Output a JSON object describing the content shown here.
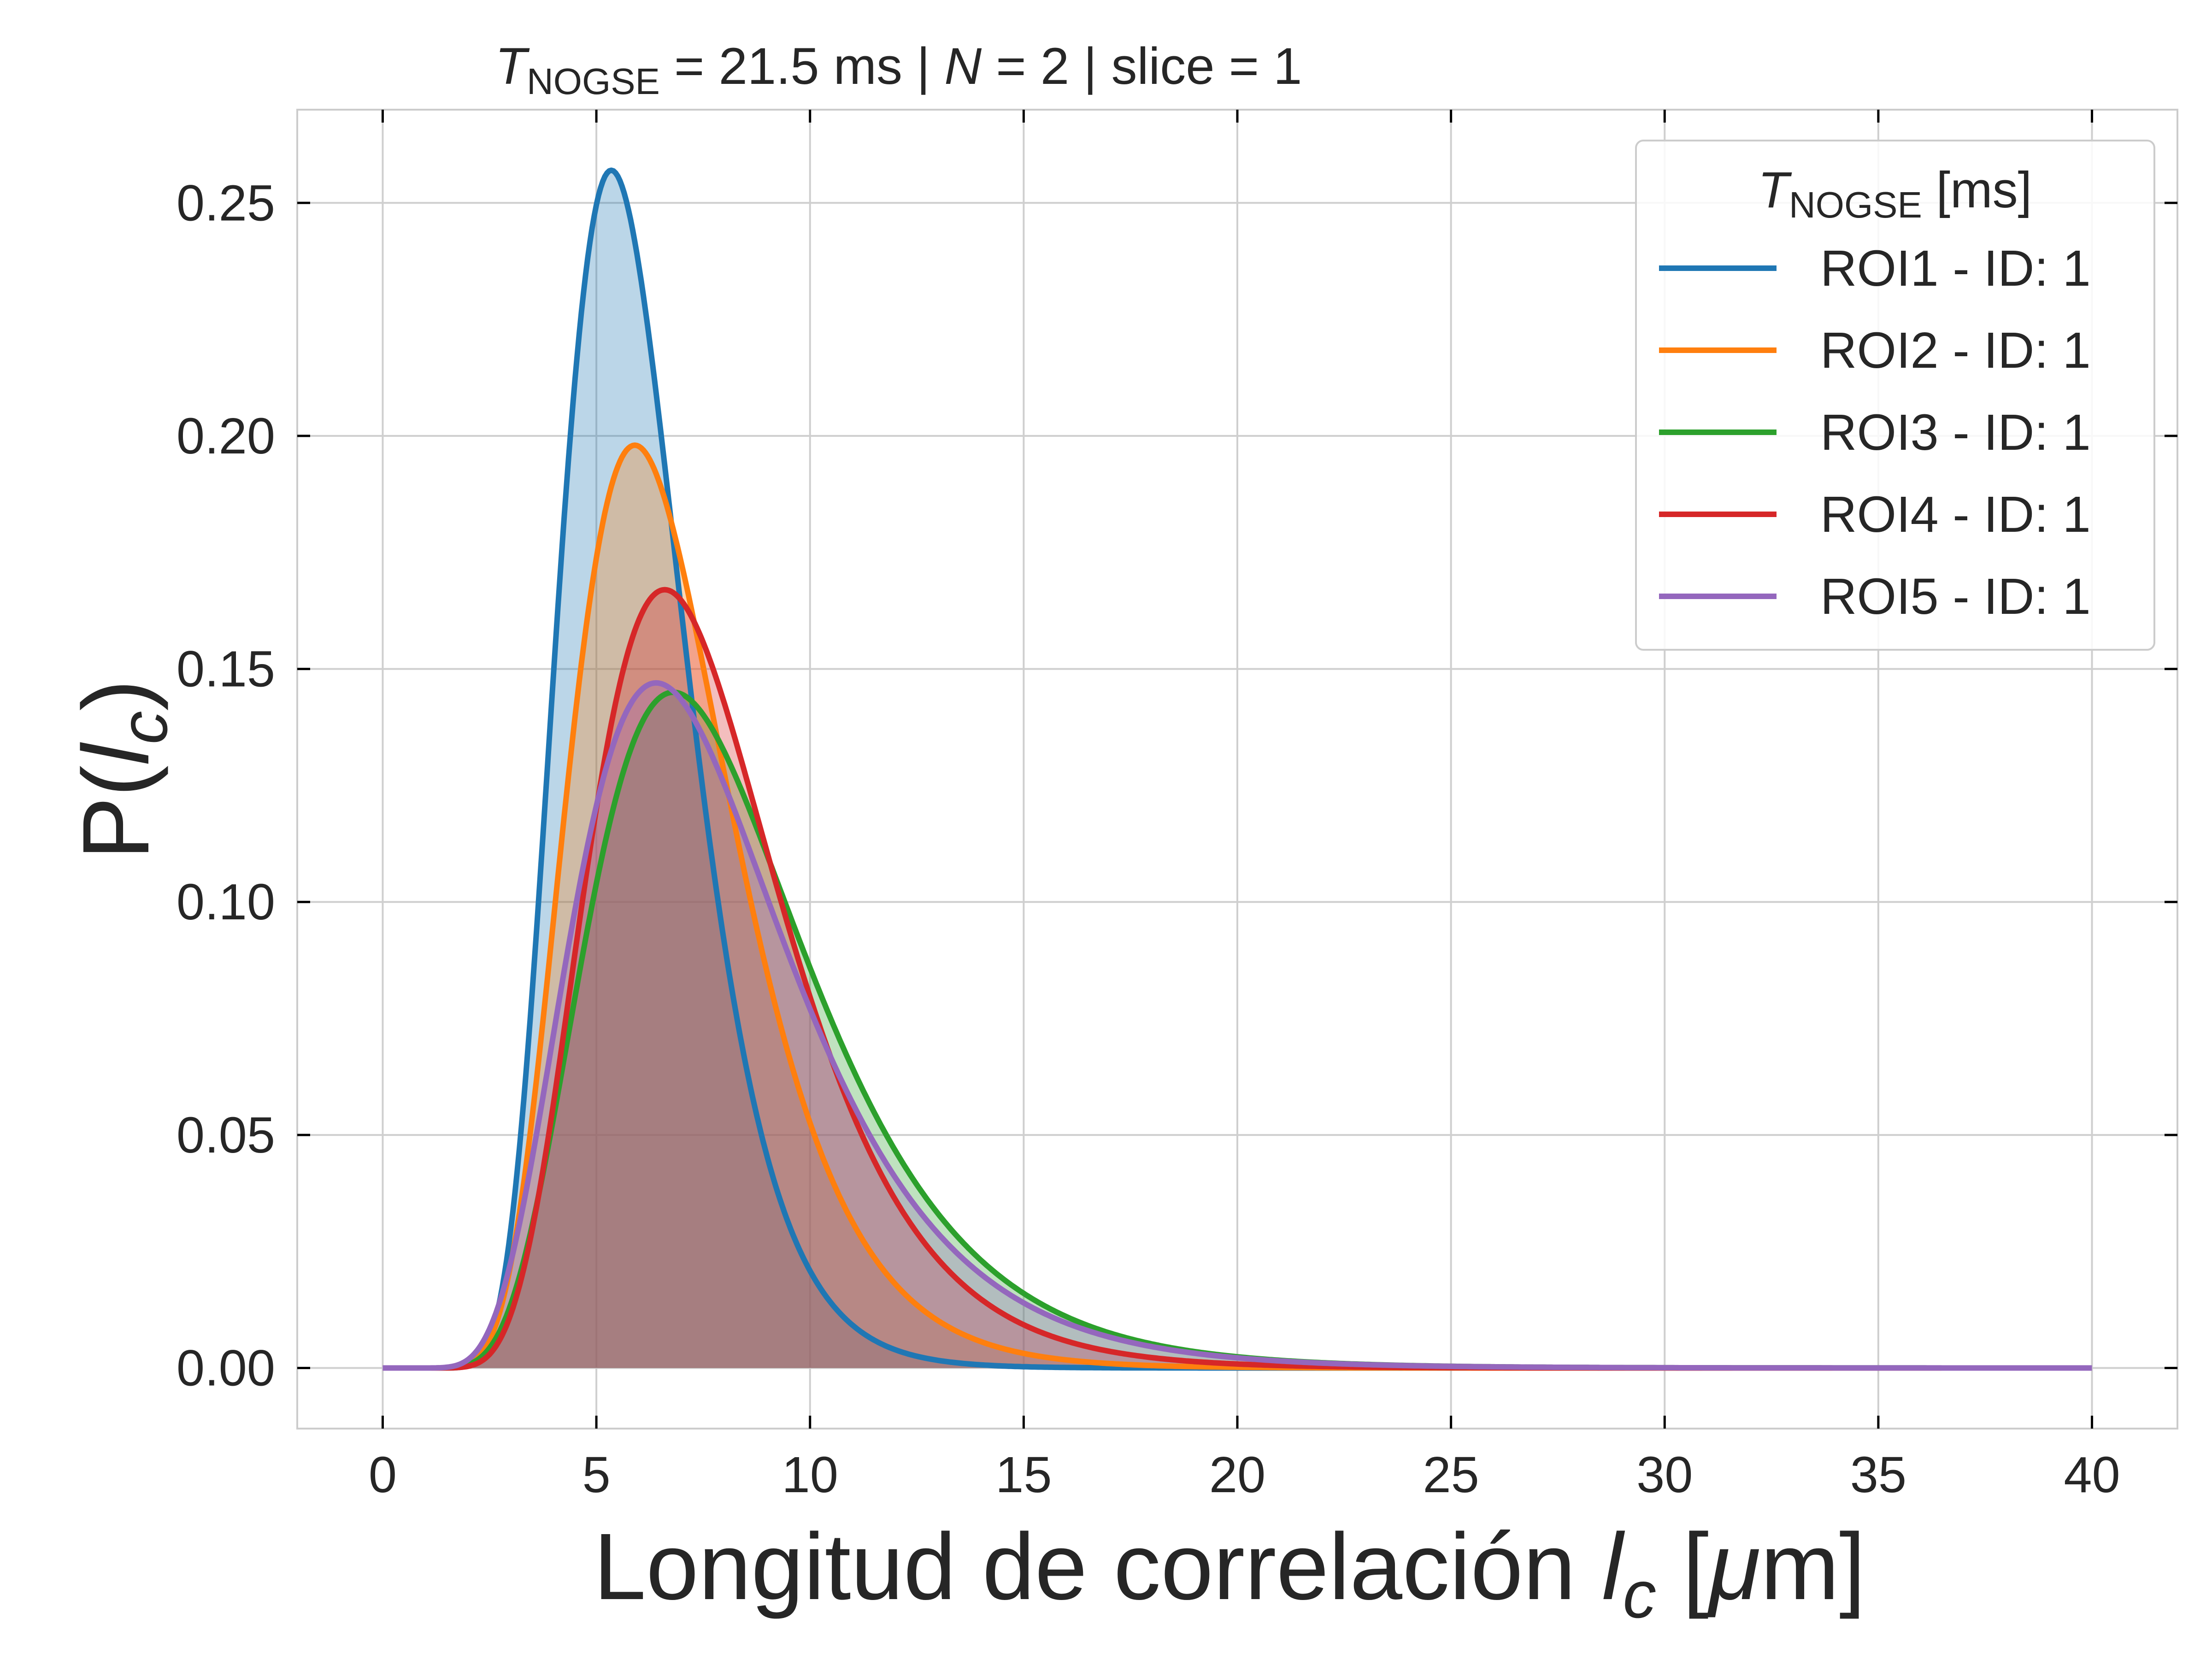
{
  "chart_data": {
    "type": "area",
    "title": {
      "sym": "T",
      "sub": "NOGSE",
      "rest1": " = 21.5 ms | ",
      "n_sym": "N",
      "rest2": " = 2 | slice = 1"
    },
    "xlabel": {
      "prefix": "Longitud de correlación ",
      "sym": "l",
      "sub": "c",
      "open": " [",
      "mu": "μ",
      "close": "m]"
    },
    "ylabel": {
      "prefix": "P(",
      "sym": "l",
      "sub": "c",
      "close": ")"
    },
    "xlim": [
      -2,
      42
    ],
    "ylim": [
      -0.013,
      0.27
    ],
    "xticks": [
      0,
      5,
      10,
      15,
      20,
      25,
      30,
      35,
      40
    ],
    "xtick_labels": [
      "0",
      "5",
      "10",
      "15",
      "20",
      "25",
      "30",
      "35",
      "40"
    ],
    "yticks": [
      0.0,
      0.05,
      0.1,
      0.15,
      0.2,
      0.25
    ],
    "ytick_labels": [
      "0.00",
      "0.05",
      "0.10",
      "0.15",
      "0.20",
      "0.25"
    ],
    "x_range": [
      0,
      40
    ],
    "grid": true,
    "legend": {
      "placement": "top-right",
      "title_sym": "T",
      "title_sub": "NOGSE",
      "title_rest": " [ms]"
    },
    "series": [
      {
        "name": "ROI1 - ID: 1",
        "color": "#1f77b4",
        "distribution": "lognormal",
        "mode": 5.35,
        "peak": 0.257
      },
      {
        "name": "ROI2 - ID: 1",
        "color": "#ff7f0e",
        "distribution": "lognormal",
        "mode": 5.9,
        "peak": 0.198
      },
      {
        "name": "ROI3 - ID: 1",
        "color": "#2ca02c",
        "distribution": "lognormal",
        "mode": 6.8,
        "peak": 0.145
      },
      {
        "name": "ROI4 - ID: 1",
        "color": "#d62728",
        "distribution": "lognormal",
        "mode": 6.6,
        "peak": 0.167
      },
      {
        "name": "ROI5 - ID: 1",
        "color": "#9467bd",
        "distribution": "lognormal",
        "mode": 6.4,
        "peak": 0.147
      }
    ]
  }
}
